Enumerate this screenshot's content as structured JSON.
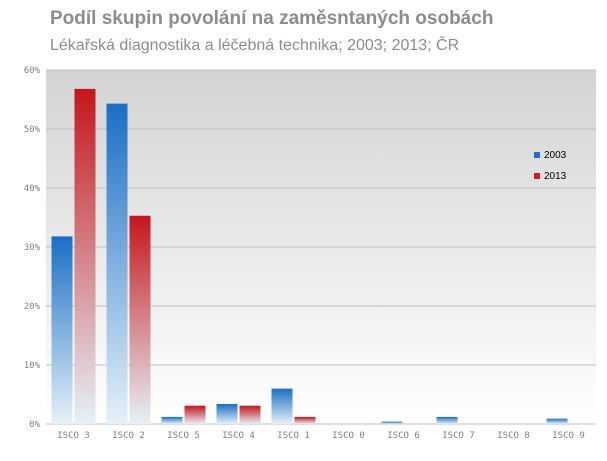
{
  "title": "Podíl skupin povolání na zaměsntaných osobách",
  "subtitle": "Lékařská diagnostika a léčebná  technika; 2003; 2013; ČR",
  "chart_data": {
    "type": "bar",
    "categories": [
      "ISCO 3",
      "ISCO 2",
      "ISCO 5",
      "ISCO 4",
      "ISCO 1",
      "ISCO 0",
      "ISCO 6",
      "ISCO 7",
      "ISCO 8",
      "ISCO 9"
    ],
    "series": [
      {
        "name": "2003",
        "values": [
          31.8,
          54.3,
          1.2,
          3.4,
          6.0,
          0.0,
          0.4,
          1.2,
          0.0,
          0.9
        ],
        "color": "#1f6fc6"
      },
      {
        "name": "2013",
        "values": [
          56.8,
          35.3,
          3.1,
          3.1,
          1.2,
          0.0,
          0.0,
          0.0,
          0.0,
          0.0
        ],
        "color": "#c8202a"
      }
    ],
    "yticks": [
      "0%",
      "10%",
      "20%",
      "30%",
      "40%",
      "50%",
      "60%"
    ],
    "ylim": [
      0,
      60
    ],
    "legend_position": "right",
    "grid": true
  }
}
